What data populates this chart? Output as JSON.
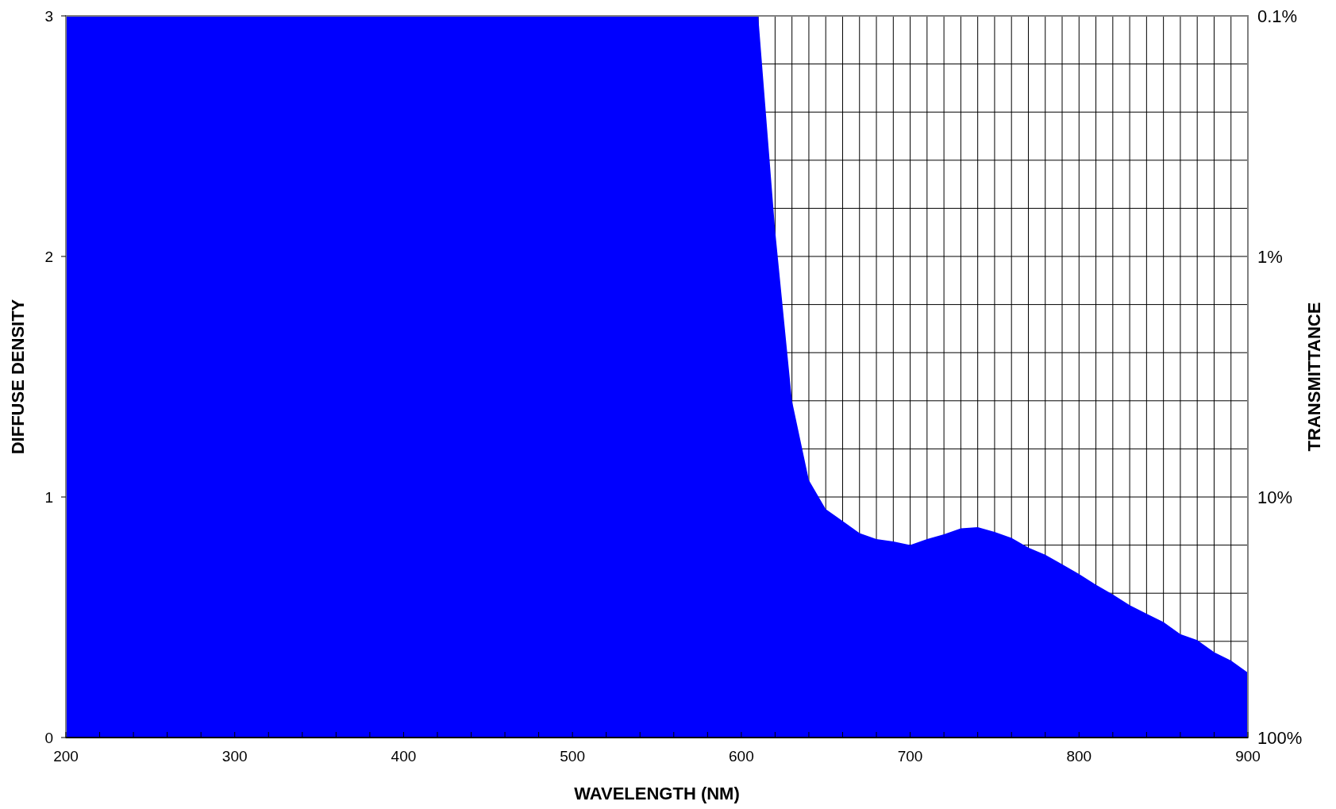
{
  "chart_data": {
    "type": "area",
    "xlabel": "WAVELENGTH (NM)",
    "ylabel": "DIFFUSE DENSITY",
    "y2label": "TRANSMITTANCE",
    "x": [
      200,
      600,
      610,
      620,
      630,
      640,
      650,
      660,
      670,
      680,
      690,
      700,
      710,
      720,
      730,
      740,
      750,
      760,
      770,
      780,
      790,
      800,
      810,
      820,
      830,
      840,
      850,
      860,
      870,
      880,
      890,
      900
    ],
    "series": [
      {
        "color": "#0000ff",
        "values": [
          3,
          3,
          3,
          2.11,
          1.4,
          1.07,
          0.95,
          0.9,
          0.85,
          0.825,
          0.815,
          0.8,
          0.825,
          0.845,
          0.87,
          0.875,
          0.855,
          0.83,
          0.79,
          0.76,
          0.72,
          0.68,
          0.635,
          0.595,
          0.55,
          0.515,
          0.48,
          0.43,
          0.405,
          0.355,
          0.32,
          0.27
        ]
      }
    ],
    "xlim": [
      200,
      900
    ],
    "xticks": [
      200,
      {
        "value": 220,
        "label": null
      },
      {
        "value": 240,
        "label": null
      },
      {
        "value": 260,
        "label": null
      },
      {
        "value": 280,
        "label": null
      },
      300,
      {
        "value": 320,
        "label": null
      },
      {
        "value": 340,
        "label": null
      },
      {
        "value": 360,
        "label": null
      },
      {
        "value": 380,
        "label": null
      },
      400,
      {
        "value": 420,
        "label": null
      },
      {
        "value": 440,
        "label": null
      },
      {
        "value": 460,
        "label": null
      },
      {
        "value": 480,
        "label": null
      },
      500,
      {
        "value": 520,
        "label": null
      },
      {
        "value": 540,
        "label": null
      },
      {
        "value": 560,
        "label": null
      },
      {
        "value": 580,
        "label": null
      },
      600,
      {
        "value": 620,
        "label": null
      },
      {
        "value": 640,
        "label": null
      },
      {
        "value": 660,
        "label": null
      },
      {
        "value": 680,
        "label": null
      },
      700,
      {
        "value": 720,
        "label": null
      },
      {
        "value": 740,
        "label": null
      },
      {
        "value": 760,
        "label": null
      },
      {
        "value": 780,
        "label": null
      },
      800,
      {
        "value": 820,
        "label": null
      },
      {
        "value": 840,
        "label": null
      },
      {
        "value": 860,
        "label": null
      },
      {
        "value": 880,
        "label": null
      },
      900
    ],
    "ylim": [
      0,
      3
    ],
    "yticks": [
      0,
      {
        "value": 0.4,
        "label": null
      },
      {
        "value": 0.6,
        "label": null
      },
      {
        "value": 0.8,
        "label": null
      },
      1,
      {
        "value": 1.2,
        "label": null
      },
      {
        "value": 1.4,
        "label": null
      },
      {
        "value": 1.6,
        "label": null
      },
      {
        "value": 1.8,
        "label": null
      },
      2,
      {
        "value": 2.2,
        "label": null
      },
      {
        "value": 2.4,
        "label": null
      },
      {
        "value": 2.6,
        "label": null
      },
      {
        "value": 2.8,
        "label": null
      },
      3
    ],
    "y2lim": [
      100,
      0.1
    ],
    "log": "y2",
    "y2ticks": [
      {
        "value": 100,
        "label": "100%"
      },
      {
        "value": 10,
        "label": "10%"
      },
      {
        "value": 1,
        "label": "1%"
      },
      {
        "value": 0.1,
        "label": "0.1%"
      }
    ],
    "grid": true
  }
}
